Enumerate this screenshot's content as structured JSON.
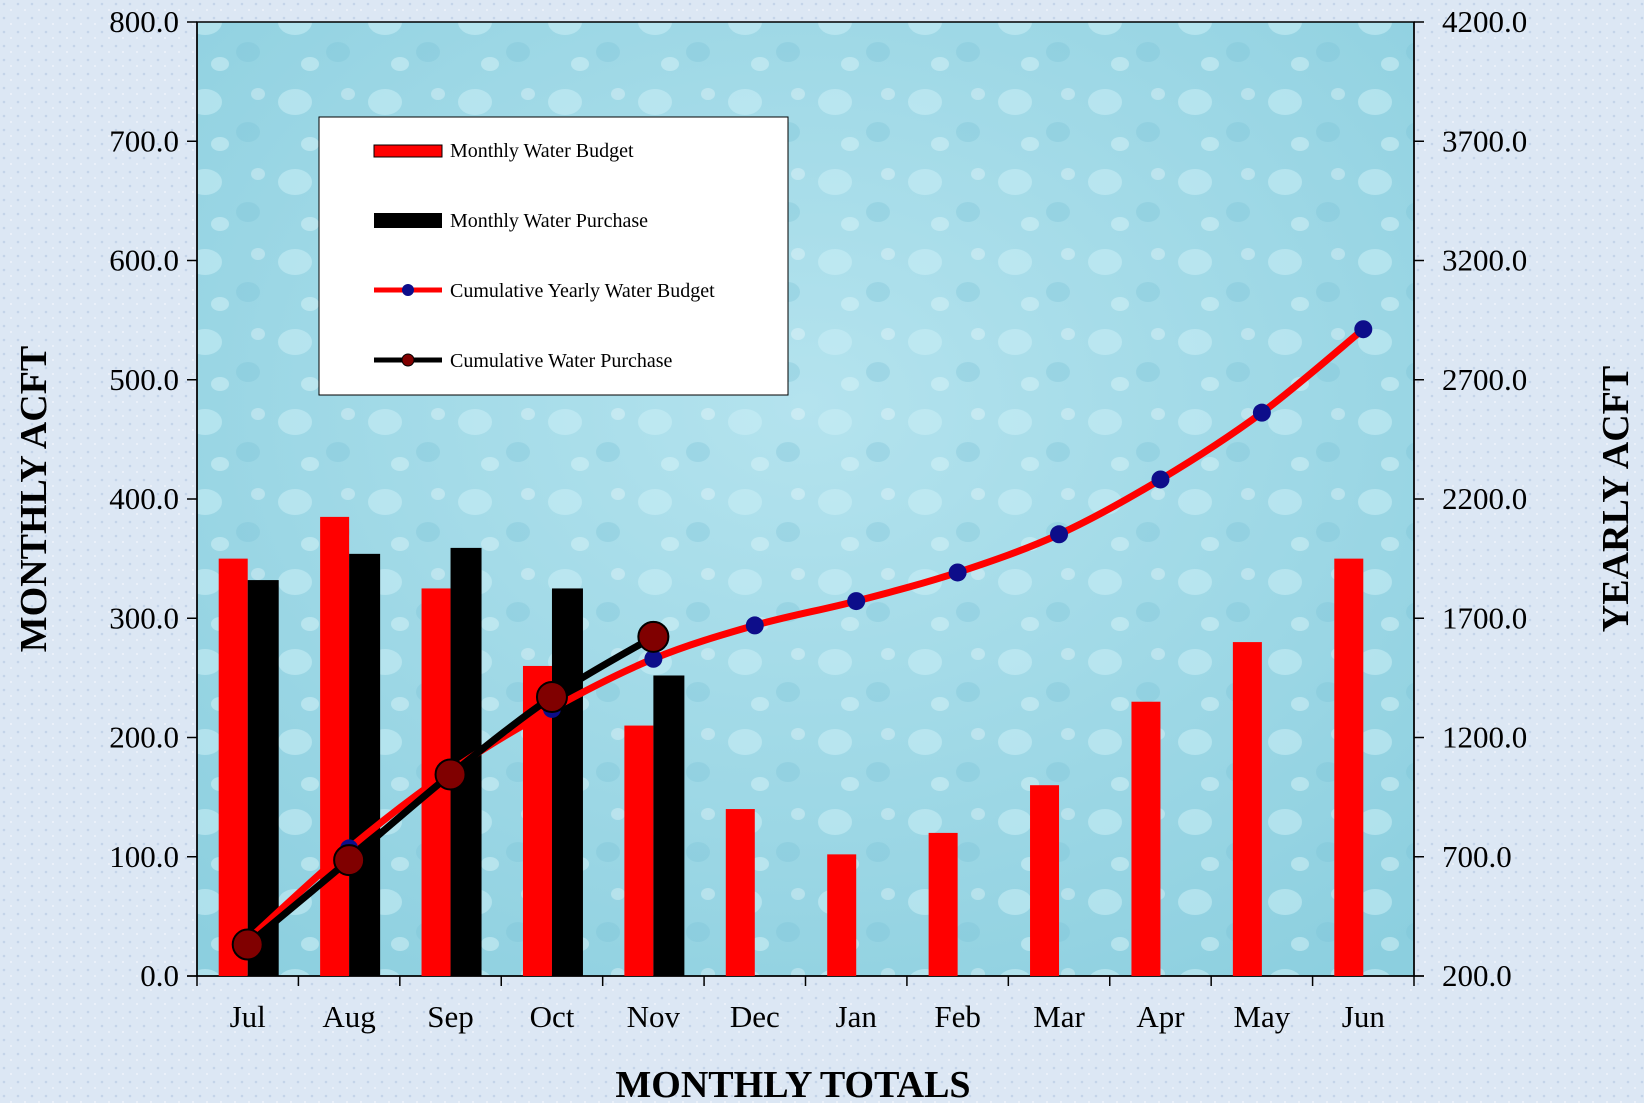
{
  "chart_data": {
    "type": "bar",
    "categories": [
      "Jul",
      "Aug",
      "Sep",
      "Oct",
      "Nov",
      "Dec",
      "Jan",
      "Feb",
      "Mar",
      "Apr",
      "May",
      "Jun"
    ],
    "xlabel": "MONTHLY TOTALS",
    "ylabel_left": "MONTHLY ACFT",
    "ylabel_right": "YEARLY ACFT",
    "ylim_left": [
      0,
      800
    ],
    "ylim_right": [
      200,
      4200
    ],
    "yticks_left": [
      "0.0",
      "100.0",
      "200.0",
      "300.0",
      "400.0",
      "500.0",
      "600.0",
      "700.0",
      "800.0"
    ],
    "yticks_right": [
      "200.0",
      "700.0",
      "1200.0",
      "1700.0",
      "2200.0",
      "2700.0",
      "3200.0",
      "3700.0",
      "4200.0"
    ],
    "grid": false,
    "legend_position": "top-left",
    "series": [
      {
        "name": "Monthly Water Budget",
        "kind": "bar",
        "axis": "left",
        "color": "#ff0000",
        "values": [
          350,
          385,
          325,
          260,
          210,
          140,
          102,
          120,
          160,
          230,
          280,
          350
        ]
      },
      {
        "name": "Monthly Water Purchase",
        "kind": "bar",
        "axis": "left",
        "color": "#000000",
        "values": [
          332,
          354,
          359,
          325,
          252,
          null,
          null,
          null,
          null,
          null,
          null,
          null
        ]
      },
      {
        "name": "Cumulative Yearly Water Budget",
        "kind": "line",
        "axis": "right",
        "color": "#ff0000",
        "marker_color": "#0d0d8a",
        "values": [
          350,
          735,
          1060,
          1320,
          1530,
          1670,
          1772,
          1892,
          2052,
          2282,
          2562,
          2912
        ]
      },
      {
        "name": "Cumulative Water Purchase",
        "kind": "line",
        "axis": "right",
        "color": "#000000",
        "marker_color": "#800000",
        "values": [
          332,
          686,
          1045,
          1370,
          1622,
          null,
          null,
          null,
          null,
          null,
          null,
          null
        ]
      }
    ]
  }
}
